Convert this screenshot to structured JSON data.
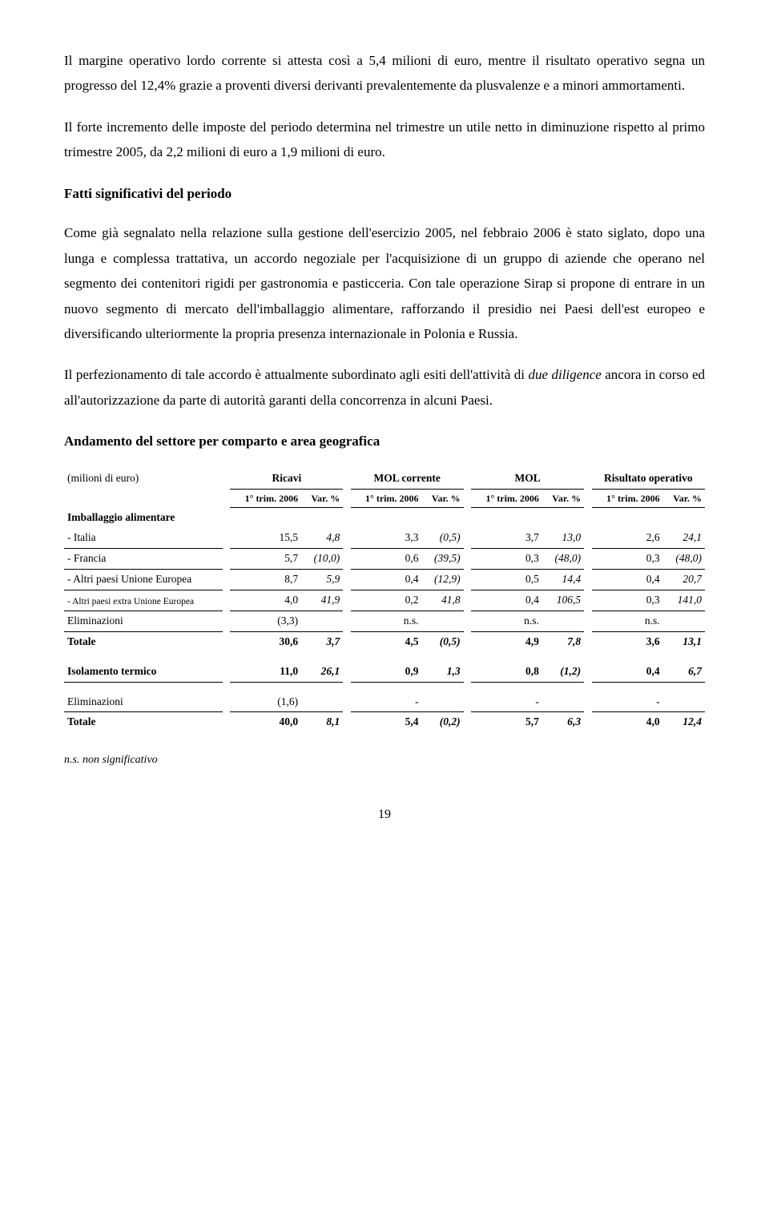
{
  "para1": "Il margine operativo lordo corrente si attesta così a 5,4 milioni di euro, mentre il risultato operativo segna un progresso del 12,4% grazie a proventi diversi derivanti prevalentemente da plusvalenze e a minori ammortamenti.",
  "para2": "Il forte incremento delle imposte del periodo determina nel trimestre un utile netto in diminuzione rispetto al primo trimestre 2005, da 2,2 milioni di euro a 1,9 milioni di euro.",
  "section1_title": "Fatti significativi del periodo",
  "para3a": "Come già segnalato nella relazione sulla gestione dell'esercizio 2005, nel febbraio 2006 è stato siglato, dopo una lunga e complessa trattativa, un accordo negoziale per l'acquisizione di un gruppo di aziende che operano nel segmento dei contenitori rigidi per gastronomia e pasticceria. Con tale operazione Sirap si propone di entrare in un nuovo segmento di mercato dell'imballaggio alimentare, rafforzando il presidio nei Paesi dell'est europeo e diversificando ulteriormente la propria presenza internazionale in Polonia e Russia.",
  "para3b_pre": "Il perfezionamento di tale accordo è attualmente subordinato agli esiti dell'attività di ",
  "para3b_em": "due diligence",
  "para3b_post": " ancora in corso ed all'autorizzazione da parte di autorità garanti della concorrenza in alcuni Paesi.",
  "section2_title": "Andamento del settore per comparto e area geografica",
  "table": {
    "unit_label": "(milioni di euro)",
    "groups": [
      "Ricavi",
      "MOL corrente",
      "MOL",
      "Risultato operativo"
    ],
    "sub1": "1° trim. 2006",
    "sub2": "Var. %",
    "seg1": "Imballaggio alimentare",
    "rows_seg1": [
      {
        "label": "- Italia",
        "v": [
          "15,5",
          "4,8",
          "3,3",
          "(0,5)",
          "3,7",
          "13,0",
          "2,6",
          "24,1"
        ],
        "it": [
          0,
          1,
          0,
          1,
          0,
          1,
          0,
          1
        ]
      },
      {
        "label": "- Francia",
        "v": [
          "5,7",
          "(10,0)",
          "0,6",
          "(39,5)",
          "0,3",
          "(48,0)",
          "0,3",
          "(48,0)"
        ],
        "it": [
          0,
          1,
          0,
          1,
          0,
          1,
          0,
          1
        ]
      },
      {
        "label": "- Altri paesi Unione Europea",
        "v": [
          "8,7",
          "5,9",
          "0,4",
          "(12,9)",
          "0,5",
          "14,4",
          "0,4",
          "20,7"
        ],
        "it": [
          0,
          1,
          0,
          1,
          0,
          1,
          0,
          1
        ]
      },
      {
        "label": "- Altri paesi extra Unione Europea",
        "v": [
          "4,0",
          "41,9",
          "0,2",
          "41,8",
          "0,4",
          "106,5",
          "0,3",
          "141,0"
        ],
        "it": [
          0,
          1,
          0,
          1,
          0,
          1,
          0,
          1
        ],
        "small": true
      },
      {
        "label": "Eliminazioni",
        "v": [
          "(3,3)",
          "",
          "n.s.",
          "",
          "n.s.",
          "",
          "n.s.",
          ""
        ],
        "it": [
          0,
          0,
          0,
          0,
          0,
          0,
          0,
          0
        ]
      }
    ],
    "tot1": {
      "label": "Totale",
      "v": [
        "30,6",
        "3,7",
        "4,5",
        "(0,5)",
        "4,9",
        "7,8",
        "3,6",
        "13,1"
      ]
    },
    "seg2": {
      "label": "Isolamento termico",
      "v": [
        "11,0",
        "26,1",
        "0,9",
        "1,3",
        "0,8",
        "(1,2)",
        "0,4",
        "6,7"
      ]
    },
    "elim2": {
      "label": "Eliminazioni",
      "v": [
        "(1,6)",
        "",
        "-",
        "",
        "-",
        "",
        "-",
        ""
      ]
    },
    "tot2": {
      "label": "Totale",
      "v": [
        "40,0",
        "8,1",
        "5,4",
        "(0,2)",
        "5,7",
        "6,3",
        "4,0",
        "12,4"
      ]
    }
  },
  "footnote": "n.s. non significativo",
  "pagenum": "19"
}
